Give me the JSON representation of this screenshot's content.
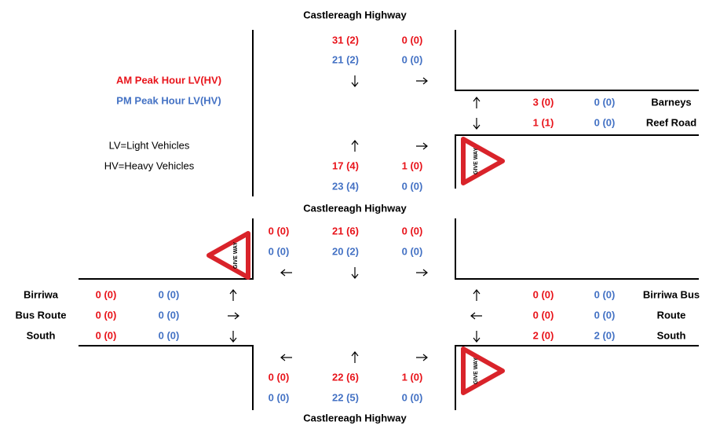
{
  "legend": {
    "am": "AM Peak Hour LV(HV)",
    "pm": "PM Peak Hour LV(HV)",
    "lv": "LV=Light Vehicles",
    "hv": "HV=Heavy Vehicles"
  },
  "roads": {
    "north": "Castlereagh Highway",
    "middle": "Castlereagh Highway",
    "south": "Castlereagh Highway",
    "barneys": [
      "Barneys",
      "Reef Road"
    ],
    "birriwa_west": [
      "Birriwa",
      "Bus Route",
      "South"
    ],
    "birriwa_east": [
      "Birriwa Bus",
      "Route",
      "South"
    ]
  },
  "intersection_1": {
    "north_approach": {
      "am": [
        "31 (2)",
        "0 (0)"
      ],
      "pm": [
        "21 (2)",
        "0 (0)"
      ]
    },
    "east_approach": {
      "am": [
        "3 (0)",
        "1 (1)"
      ],
      "pm": [
        "0 (0)",
        "0 (0)"
      ]
    },
    "south_approach": {
      "am": [
        "17 (4)",
        "1 (0)"
      ],
      "pm": [
        "23 (4)",
        "0 (0)"
      ]
    }
  },
  "intersection_2": {
    "north_approach": {
      "am": [
        "0 (0)",
        "21 (6)",
        "0 (0)"
      ],
      "pm": [
        "0 (0)",
        "20 (2)",
        "0 (0)"
      ]
    },
    "west_approach": {
      "am": [
        "0 (0)",
        "0 (0)",
        "0 (0)"
      ],
      "pm": [
        "0 (0)",
        "0 (0)",
        "0 (0)"
      ]
    },
    "east_approach": {
      "am": [
        "0 (0)",
        "0 (0)",
        "2 (0)"
      ],
      "pm": [
        "0 (0)",
        "0 (0)",
        "2 (0)"
      ]
    },
    "south_approach": {
      "am": [
        "0 (0)",
        "22 (6)",
        "1 (0)"
      ],
      "pm": [
        "0 (0)",
        "22 (5)",
        "0 (0)"
      ]
    }
  },
  "sign": "GIVE WAY"
}
